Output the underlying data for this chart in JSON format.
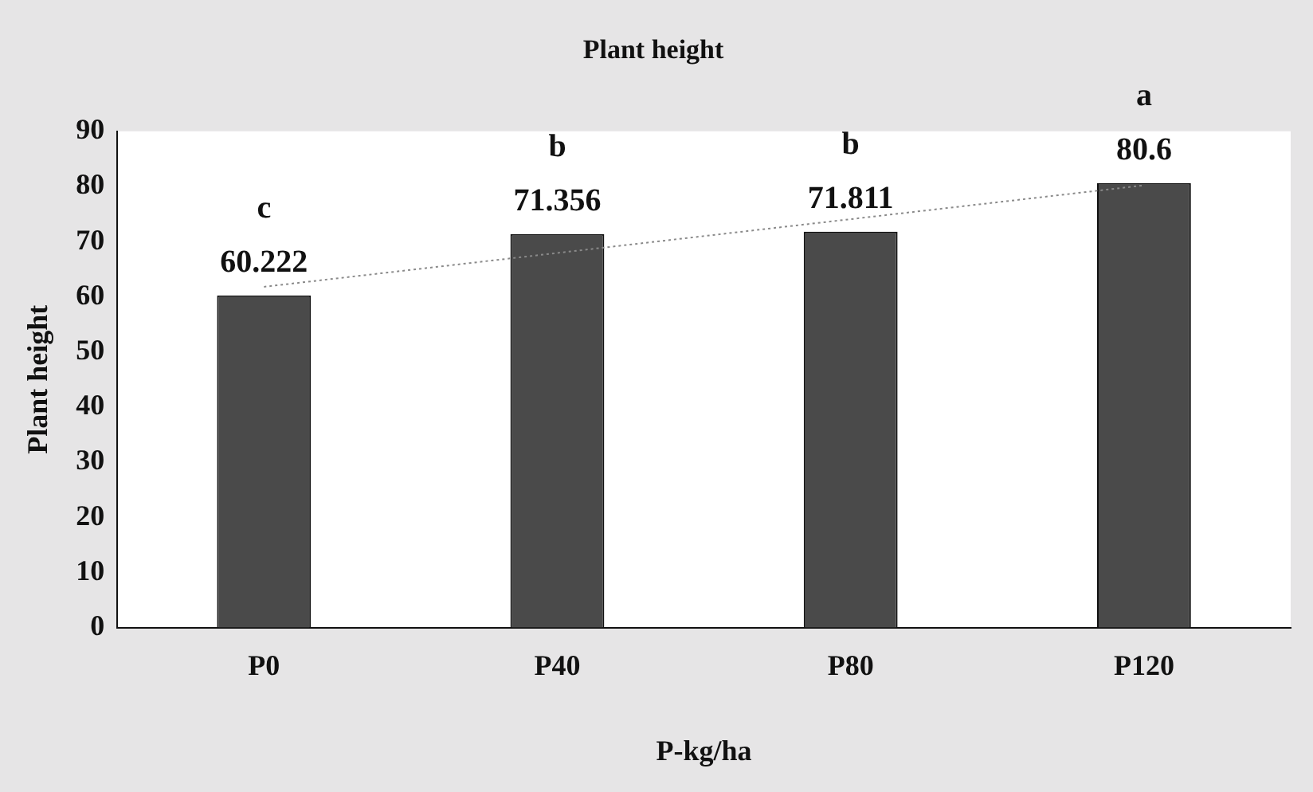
{
  "chart_data": {
    "type": "bar",
    "title": "Plant height",
    "xlabel": "P-kg/ha",
    "ylabel": "Plant height",
    "categories": [
      "P0",
      "P40",
      "P80",
      "P120"
    ],
    "series": [
      {
        "color": "#4a4a4a",
        "values": [
          60.222,
          71.356,
          71.811,
          80.6
        ],
        "value_labels": [
          "60.222",
          "71.356",
          "71.811",
          "80.6"
        ]
      },
      {
        "type": "line",
        "color": "#8a8a8a",
        "line_style": "dotted",
        "marker": "none",
        "x": [
          "P0",
          "P120"
        ],
        "values": [
          61.8,
          80.2
        ]
      }
    ],
    "ylim": [
      0,
      90
    ],
    "yticks": [
      0,
      10,
      20,
      30,
      40,
      50,
      60,
      70,
      80,
      90
    ],
    "grid": false,
    "legend": false,
    "annotations": [
      {
        "text": "c",
        "x": "P0",
        "y": 60.222
      },
      {
        "text": "b",
        "x": "P40",
        "y": 71.356
      },
      {
        "text": "b",
        "x": "P80",
        "y": 71.811
      },
      {
        "text": "a",
        "x": "P120",
        "y": 80.6
      }
    ]
  }
}
